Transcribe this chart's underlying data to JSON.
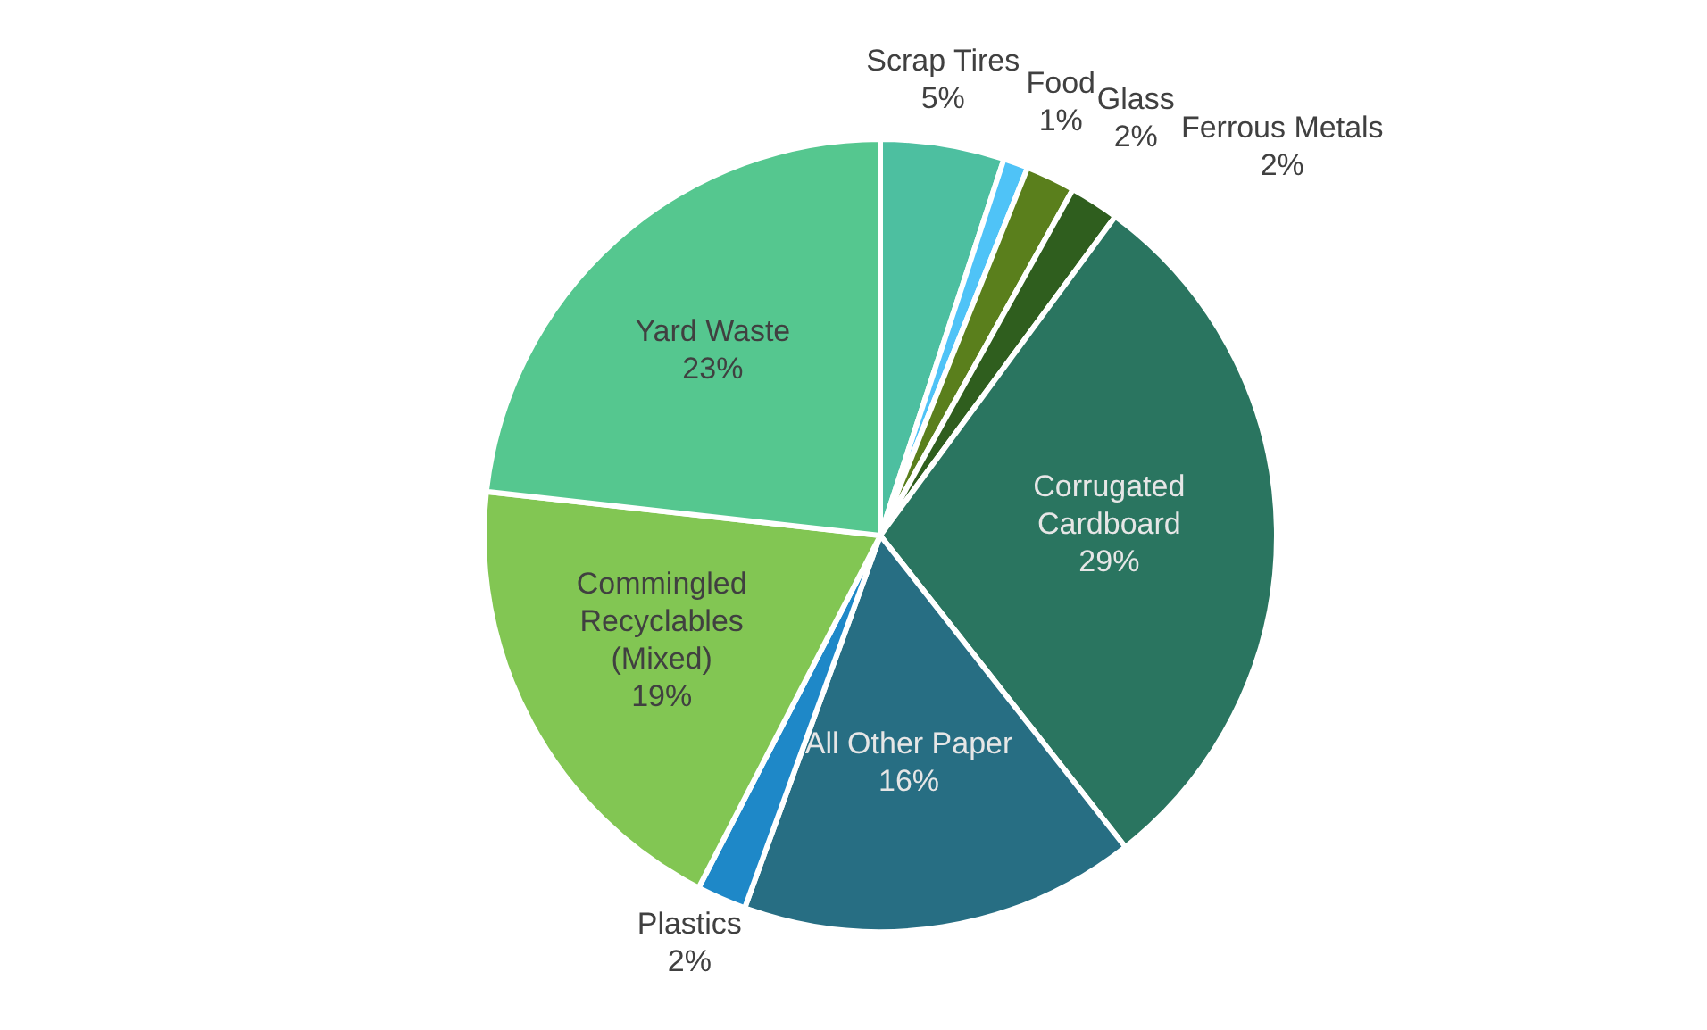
{
  "chart_data": {
    "type": "pie",
    "categories": [
      "Scrap Tires",
      "Food",
      "Glass",
      "Ferrous Metals",
      "Corrugated Cardboard",
      "All Other Paper",
      "Plastics",
      "Commingled Recyclables (Mixed)",
      "Yard Waste"
    ],
    "values": [
      5,
      1,
      2,
      2,
      29,
      16,
      2,
      19,
      23
    ],
    "value_labels": [
      "5%",
      "1%",
      "2%",
      "2%",
      "29%",
      "16%",
      "2%",
      "19%",
      "23%"
    ],
    "colors": [
      "#4dbfa0",
      "#4fc3f7",
      "#5a7f1c",
      "#2f5e1e",
      "#2a7560",
      "#276e83",
      "#1e88c8",
      "#82c653",
      "#55c78f"
    ],
    "legend": false
  }
}
